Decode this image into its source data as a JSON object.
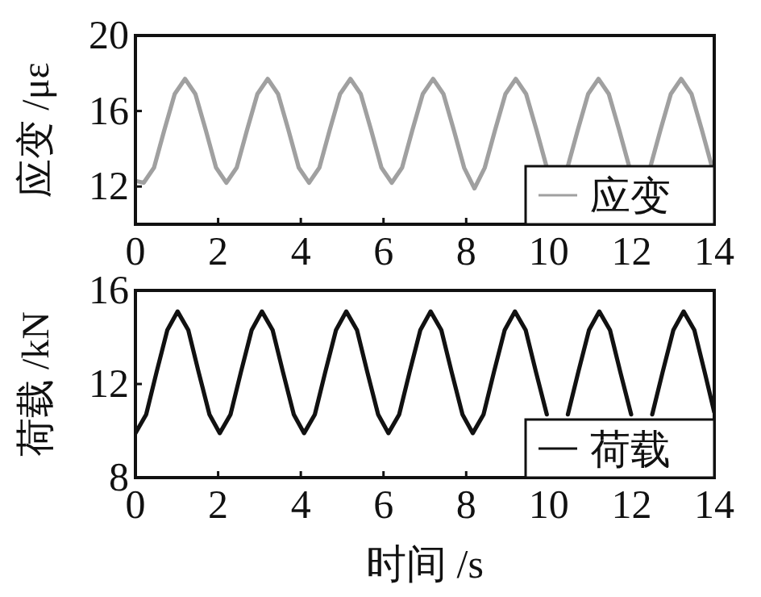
{
  "chart_data": [
    {
      "type": "line",
      "ylabel": "应变 /με",
      "xlim": [
        0,
        14
      ],
      "xticks": [
        0,
        2,
        4,
        6,
        8,
        10,
        12,
        14
      ],
      "ylim": [
        10,
        20
      ],
      "yticks": [
        12,
        16,
        20
      ],
      "legend": "bottom right",
      "x": [
        0,
        0.2,
        0.45,
        0.7,
        0.95,
        1.2,
        1.45,
        1.7,
        1.95,
        2.2,
        2.45,
        2.7,
        2.95,
        3.2,
        3.45,
        3.7,
        3.95,
        4.2,
        4.45,
        4.7,
        4.95,
        5.2,
        5.45,
        5.7,
        5.95,
        6.2,
        6.45,
        6.7,
        6.95,
        7.2,
        7.45,
        7.7,
        7.95,
        8.2,
        8.45,
        8.7,
        8.95,
        9.2,
        9.45,
        9.7,
        9.95,
        10.45,
        10.7,
        10.95,
        11.2,
        11.45,
        11.7,
        11.95,
        12.45,
        12.7,
        12.95,
        13.2,
        13.45,
        13.7,
        13.95
      ],
      "series": [
        {
          "name": "应变",
          "color": "#a0a0a0",
          "values": [
            12.3,
            12.2,
            13.0,
            15.0,
            16.9,
            17.7,
            16.9,
            15.0,
            13.0,
            12.2,
            13.0,
            15.0,
            16.9,
            17.7,
            16.9,
            15.0,
            13.0,
            12.2,
            13.0,
            15.0,
            16.9,
            17.7,
            16.9,
            15.0,
            13.0,
            12.2,
            13.0,
            15.0,
            16.9,
            17.7,
            16.9,
            15.0,
            13.0,
            11.9,
            13.0,
            15.0,
            16.9,
            17.7,
            16.9,
            15.0,
            13.0,
            13.0,
            15.0,
            16.9,
            17.7,
            16.9,
            15.0,
            13.0,
            13.0,
            15.0,
            16.9,
            17.7,
            16.9,
            15.0,
            13.0
          ]
        }
      ]
    },
    {
      "type": "line",
      "xlabel": "时间 /s",
      "ylabel": "荷载 /kN",
      "xlim": [
        0,
        14
      ],
      "xticks": [
        0,
        2,
        4,
        6,
        8,
        10,
        12,
        14
      ],
      "ylim": [
        8,
        16
      ],
      "yticks": [
        8,
        12,
        16
      ],
      "legend": "bottom right",
      "x": [
        0,
        0.26,
        0.51,
        0.77,
        1.02,
        1.28,
        1.53,
        1.79,
        2.04,
        2.3,
        2.55,
        2.81,
        3.06,
        3.32,
        3.57,
        3.83,
        4.08,
        4.34,
        4.59,
        4.85,
        5.1,
        5.36,
        5.61,
        5.87,
        6.12,
        6.38,
        6.63,
        6.89,
        7.14,
        7.4,
        7.65,
        7.91,
        8.16,
        8.42,
        8.67,
        8.93,
        9.18,
        9.44,
        9.69,
        9.95,
        10.46,
        10.71,
        10.97,
        11.22,
        11.48,
        11.73,
        11.99,
        12.5,
        12.75,
        13.01,
        13.26,
        13.52,
        13.77,
        14
      ],
      "series": [
        {
          "name": "荷载",
          "color": "#111111",
          "values": [
            9.9,
            10.7,
            12.5,
            14.3,
            15.1,
            14.3,
            12.5,
            10.7,
            9.9,
            10.7,
            12.5,
            14.3,
            15.1,
            14.3,
            12.5,
            10.7,
            9.9,
            10.7,
            12.5,
            14.3,
            15.1,
            14.3,
            12.5,
            10.7,
            9.9,
            10.7,
            12.5,
            14.3,
            15.1,
            14.3,
            12.5,
            10.7,
            9.9,
            10.7,
            12.5,
            14.3,
            15.1,
            14.3,
            12.5,
            10.7,
            10.7,
            12.5,
            14.3,
            15.1,
            14.3,
            12.5,
            10.7,
            10.7,
            12.5,
            14.3,
            15.1,
            14.3,
            12.5,
            10.8
          ]
        }
      ]
    }
  ]
}
